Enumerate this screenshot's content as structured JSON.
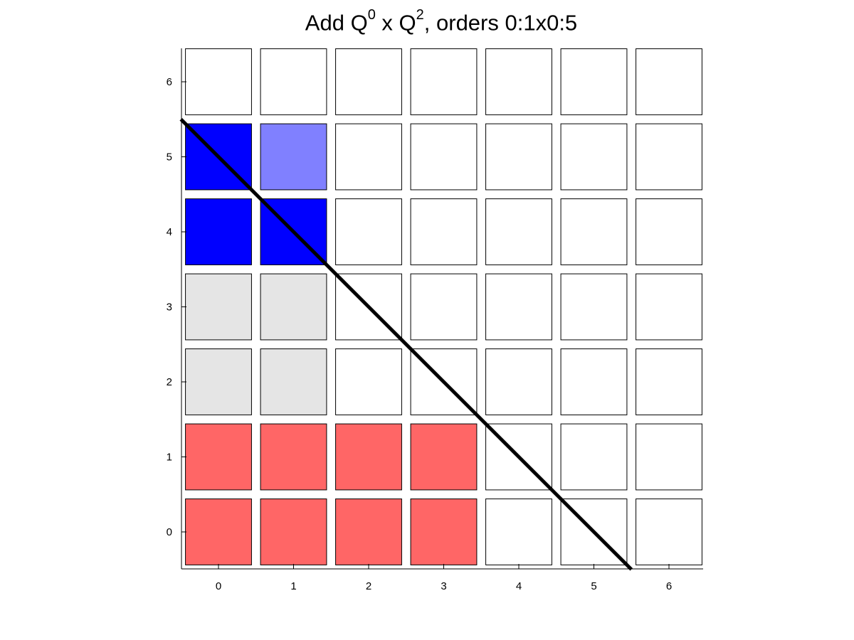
{
  "chart_data": {
    "type": "heatmap",
    "title": {
      "prefix": "Add Q",
      "sup1": "0",
      "mid": " x Q",
      "sup2": "2",
      "suffix": ", orders 0:1x0:5"
    },
    "xlabel": "",
    "ylabel": "",
    "xlim": [
      -0.5,
      6.45
    ],
    "ylim": [
      -0.5,
      6.5
    ],
    "x_ticks": [
      0,
      1,
      2,
      3,
      4,
      5,
      6
    ],
    "y_ticks": [
      0,
      1,
      2,
      3,
      4,
      5,
      6
    ],
    "grid": false,
    "colors": {
      "red": "#ff6666",
      "gray": "#e5e5e5",
      "blue": "#0000ff",
      "lightblue": "#8080ff",
      "white": "#ffffff",
      "edge": "#000000",
      "diagonal": "#000000"
    },
    "cells": [
      {
        "x": 0,
        "y": 0,
        "fill": "red"
      },
      {
        "x": 1,
        "y": 0,
        "fill": "red"
      },
      {
        "x": 2,
        "y": 0,
        "fill": "red"
      },
      {
        "x": 3,
        "y": 0,
        "fill": "red"
      },
      {
        "x": 4,
        "y": 0,
        "fill": "white"
      },
      {
        "x": 5,
        "y": 0,
        "fill": "white"
      },
      {
        "x": 6,
        "y": 0,
        "fill": "white"
      },
      {
        "x": 0,
        "y": 1,
        "fill": "red"
      },
      {
        "x": 1,
        "y": 1,
        "fill": "red"
      },
      {
        "x": 2,
        "y": 1,
        "fill": "red"
      },
      {
        "x": 3,
        "y": 1,
        "fill": "red"
      },
      {
        "x": 4,
        "y": 1,
        "fill": "white"
      },
      {
        "x": 5,
        "y": 1,
        "fill": "white"
      },
      {
        "x": 6,
        "y": 1,
        "fill": "white"
      },
      {
        "x": 0,
        "y": 2,
        "fill": "gray"
      },
      {
        "x": 1,
        "y": 2,
        "fill": "gray"
      },
      {
        "x": 2,
        "y": 2,
        "fill": "white"
      },
      {
        "x": 3,
        "y": 2,
        "fill": "white"
      },
      {
        "x": 4,
        "y": 2,
        "fill": "white"
      },
      {
        "x": 5,
        "y": 2,
        "fill": "white"
      },
      {
        "x": 6,
        "y": 2,
        "fill": "white"
      },
      {
        "x": 0,
        "y": 3,
        "fill": "gray"
      },
      {
        "x": 1,
        "y": 3,
        "fill": "gray"
      },
      {
        "x": 2,
        "y": 3,
        "fill": "white"
      },
      {
        "x": 3,
        "y": 3,
        "fill": "white"
      },
      {
        "x": 4,
        "y": 3,
        "fill": "white"
      },
      {
        "x": 5,
        "y": 3,
        "fill": "white"
      },
      {
        "x": 6,
        "y": 3,
        "fill": "white"
      },
      {
        "x": 0,
        "y": 4,
        "fill": "blue"
      },
      {
        "x": 1,
        "y": 4,
        "fill": "blue"
      },
      {
        "x": 2,
        "y": 4,
        "fill": "white"
      },
      {
        "x": 3,
        "y": 4,
        "fill": "white"
      },
      {
        "x": 4,
        "y": 4,
        "fill": "white"
      },
      {
        "x": 5,
        "y": 4,
        "fill": "white"
      },
      {
        "x": 6,
        "y": 4,
        "fill": "white"
      },
      {
        "x": 0,
        "y": 5,
        "fill": "blue"
      },
      {
        "x": 1,
        "y": 5,
        "fill": "lightblue"
      },
      {
        "x": 2,
        "y": 5,
        "fill": "white"
      },
      {
        "x": 3,
        "y": 5,
        "fill": "white"
      },
      {
        "x": 4,
        "y": 5,
        "fill": "white"
      },
      {
        "x": 5,
        "y": 5,
        "fill": "white"
      },
      {
        "x": 6,
        "y": 5,
        "fill": "white"
      },
      {
        "x": 0,
        "y": 6,
        "fill": "white"
      },
      {
        "x": 1,
        "y": 6,
        "fill": "white"
      },
      {
        "x": 2,
        "y": 6,
        "fill": "white"
      },
      {
        "x": 3,
        "y": 6,
        "fill": "white"
      },
      {
        "x": 4,
        "y": 6,
        "fill": "white"
      },
      {
        "x": 5,
        "y": 6,
        "fill": "white"
      },
      {
        "x": 6,
        "y": 6,
        "fill": "white"
      }
    ],
    "diagonal_line": {
      "x": [
        -0.5,
        5.5
      ],
      "y": [
        5.5,
        -0.5
      ]
    }
  }
}
